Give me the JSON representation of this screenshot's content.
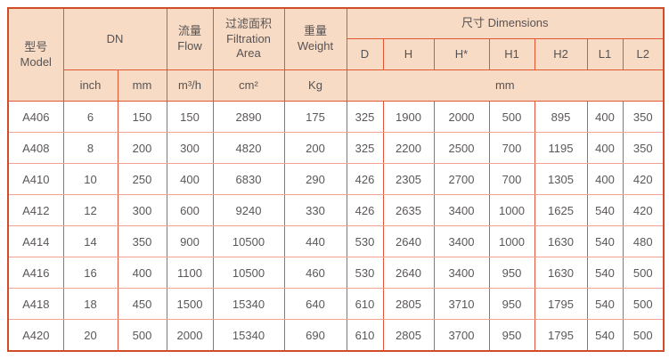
{
  "colors": {
    "header_bg": "#f8dbc5",
    "border_strong": "#d14c28",
    "border_vertical": "#e2553a",
    "border_horizontal": "#f2a392",
    "text": "#5b5757"
  },
  "header": {
    "model": "型号\nModel",
    "dn": "DN",
    "flow": "流量\nFlow",
    "filtration_area": "过滤面积\nFiltration\nArea",
    "weight": "重量\nWeight",
    "dimensions": "尺寸 Dimensions",
    "dim_cols": [
      "D",
      "H",
      "H*",
      "H1",
      "H2",
      "L1",
      "L2"
    ],
    "units": {
      "inch": "inch",
      "mm": "mm",
      "flow": "m³/h",
      "area": "cm²",
      "weight": "Kg",
      "dims": "mm"
    }
  },
  "rows": [
    {
      "model": "A406",
      "values": [
        "6",
        "150",
        "150",
        "2890",
        "175",
        "325",
        "1900",
        "2000",
        "500",
        "895",
        "400",
        "350"
      ]
    },
    {
      "model": "A408",
      "values": [
        "8",
        "200",
        "300",
        "4820",
        "200",
        "325",
        "2200",
        "2500",
        "700",
        "1195",
        "400",
        "350"
      ]
    },
    {
      "model": "A410",
      "values": [
        "10",
        "250",
        "400",
        "6830",
        "290",
        "426",
        "2305",
        "2700",
        "700",
        "1305",
        "400",
        "420"
      ]
    },
    {
      "model": "A412",
      "values": [
        "12",
        "300",
        "600",
        "9240",
        "330",
        "426",
        "2635",
        "3400",
        "1000",
        "1625",
        "540",
        "420"
      ]
    },
    {
      "model": "A414",
      "values": [
        "14",
        "350",
        "900",
        "10500",
        "440",
        "530",
        "2640",
        "3400",
        "1000",
        "1630",
        "540",
        "480"
      ]
    },
    {
      "model": "A416",
      "values": [
        "16",
        "400",
        "1100",
        "10500",
        "460",
        "530",
        "2640",
        "3400",
        "950",
        "1630",
        "540",
        "500"
      ]
    },
    {
      "model": "A418",
      "values": [
        "18",
        "450",
        "1500",
        "15340",
        "640",
        "610",
        "2805",
        "3710",
        "950",
        "1795",
        "540",
        "500"
      ]
    },
    {
      "model": "A420",
      "values": [
        "20",
        "500",
        "2000",
        "15340",
        "690",
        "610",
        "2805",
        "3700",
        "950",
        "1795",
        "540",
        "500"
      ]
    }
  ]
}
